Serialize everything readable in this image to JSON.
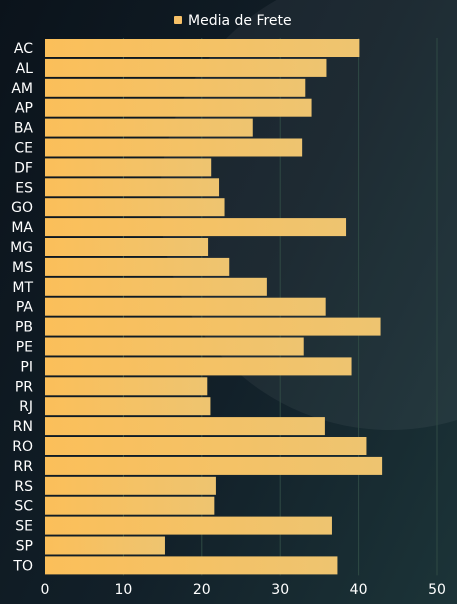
{
  "legend": {
    "label": "Media de Frete"
  },
  "colors": {
    "bar_start": "#fbbf5a",
    "bar_end": "#eec470",
    "legend_swatch": "#f6c067",
    "text": "#ffffff",
    "grid": "#2f4a44"
  },
  "chart_data": {
    "type": "bar",
    "orientation": "horizontal",
    "categories": [
      "AC",
      "AL",
      "AM",
      "AP",
      "BA",
      "CE",
      "DF",
      "ES",
      "GO",
      "MA",
      "MG",
      "MS",
      "MT",
      "PA",
      "PB",
      "PE",
      "PI",
      "PR",
      "RJ",
      "RN",
      "RO",
      "RR",
      "RS",
      "SC",
      "SE",
      "SP",
      "TO"
    ],
    "series": [
      {
        "name": "Media de Frete",
        "values": [
          40.1,
          35.9,
          33.2,
          34.0,
          26.5,
          32.8,
          21.2,
          22.2,
          22.9,
          38.4,
          20.8,
          23.5,
          28.3,
          35.8,
          42.8,
          33.0,
          39.1,
          20.7,
          21.1,
          35.7,
          41.0,
          43.0,
          21.8,
          21.6,
          36.6,
          15.3,
          37.3
        ]
      }
    ],
    "xlim": [
      0,
      50
    ],
    "x_ticks": [
      0,
      10,
      20,
      30,
      40,
      50
    ],
    "xlabel": "",
    "ylabel": "",
    "grid": "vertical",
    "legend_position": "top-center"
  }
}
